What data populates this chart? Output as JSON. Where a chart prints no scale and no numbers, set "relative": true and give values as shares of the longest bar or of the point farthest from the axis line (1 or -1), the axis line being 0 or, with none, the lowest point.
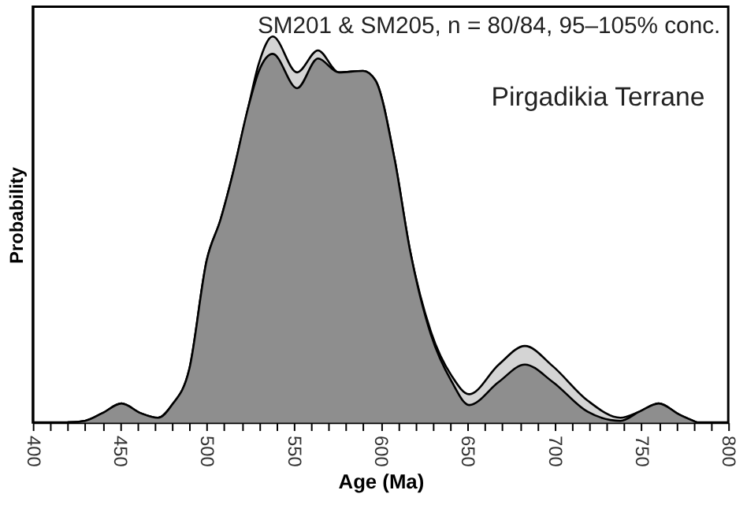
{
  "chart_data": {
    "type": "area",
    "relative": true,
    "xlabel": "Age (Ma)",
    "ylabel": "Probability",
    "annotations": [
      "SM201 & SM205, n = 80/84, 95–105% conc.",
      "Pirgadikia Terrane"
    ],
    "x": [
      420,
      430,
      440,
      451,
      462,
      472,
      480,
      490,
      500,
      508,
      515,
      524,
      530,
      538,
      552,
      564,
      576,
      590,
      597,
      608,
      617,
      629,
      641,
      651,
      668,
      683,
      699,
      719,
      738,
      749,
      760,
      772,
      782
    ],
    "series": [
      {
        "color": "#d4d4d4",
        "values": [
          0,
          0.004,
          0.024,
          0.049,
          0.024,
          0.012,
          0.045,
          0.138,
          0.42,
          0.526,
          0.644,
          0.818,
          0.93,
          1.0,
          0.907,
          0.964,
          0.907,
          0.911,
          0.887,
          0.684,
          0.445,
          0.235,
          0.12,
          0.073,
          0.15,
          0.198,
          0.146,
          0.057,
          0.012,
          0.028,
          0.049,
          0.02,
          0
        ]
      },
      {
        "color": "#8e8e8e",
        "values": [
          0,
          0.004,
          0.024,
          0.049,
          0.024,
          0.012,
          0.045,
          0.138,
          0.42,
          0.526,
          0.644,
          0.818,
          0.91,
          0.955,
          0.866,
          0.943,
          0.907,
          0.911,
          0.887,
          0.684,
          0.445,
          0.227,
          0.105,
          0.045,
          0.105,
          0.15,
          0.105,
          0.028,
          0.004,
          0.028,
          0.049,
          0.02,
          0
        ]
      }
    ],
    "xlim": [
      400,
      800
    ],
    "xticks": [
      400,
      {
        "value": 410,
        "label": null
      },
      {
        "value": 420,
        "label": null
      },
      {
        "value": 430,
        "label": null
      },
      {
        "value": 440,
        "label": null
      },
      450,
      {
        "value": 460,
        "label": null
      },
      {
        "value": 470,
        "label": null
      },
      {
        "value": 480,
        "label": null
      },
      {
        "value": 490,
        "label": null
      },
      500,
      {
        "value": 510,
        "label": null
      },
      {
        "value": 520,
        "label": null
      },
      {
        "value": 530,
        "label": null
      },
      {
        "value": 540,
        "label": null
      },
      550,
      {
        "value": 560,
        "label": null
      },
      {
        "value": 570,
        "label": null
      },
      {
        "value": 580,
        "label": null
      },
      {
        "value": 590,
        "label": null
      },
      600,
      {
        "value": 610,
        "label": null
      },
      {
        "value": 620,
        "label": null
      },
      {
        "value": 630,
        "label": null
      },
      {
        "value": 640,
        "label": null
      },
      650,
      {
        "value": 660,
        "label": null
      },
      {
        "value": 670,
        "label": null
      },
      {
        "value": 680,
        "label": null
      },
      {
        "value": 690,
        "label": null
      },
      700,
      {
        "value": 710,
        "label": null
      },
      {
        "value": 720,
        "label": null
      },
      {
        "value": 730,
        "label": null
      },
      {
        "value": 740,
        "label": null
      },
      750,
      {
        "value": 760,
        "label": null
      },
      {
        "value": 770,
        "label": null
      },
      {
        "value": 780,
        "label": null
      },
      {
        "value": 790,
        "label": null
      },
      800
    ],
    "tick_labels": "x",
    "grid": false,
    "legend": false
  }
}
